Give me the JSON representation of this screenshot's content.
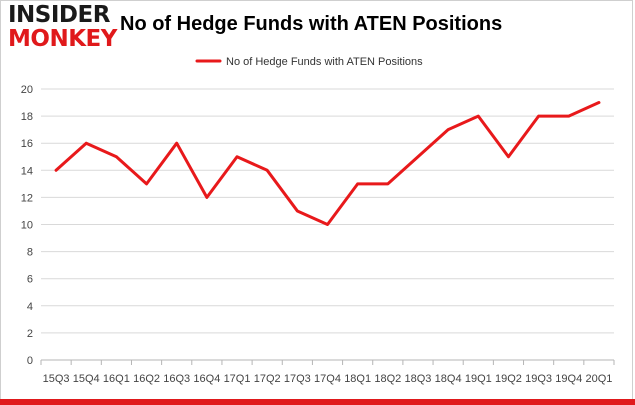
{
  "branding": {
    "logo_top": "INSIDER",
    "logo_bottom": "MONKEY",
    "logo_dark_color": "#1a1a1a",
    "logo_accent_color": "#e0191b"
  },
  "chart_data": {
    "type": "line",
    "title": "No of Hedge Funds with ATEN Positions",
    "xlabel": "",
    "ylabel": "",
    "categories": [
      "15Q3",
      "15Q4",
      "16Q1",
      "16Q2",
      "16Q3",
      "16Q4",
      "17Q1",
      "17Q2",
      "17Q3",
      "17Q4",
      "18Q1",
      "18Q2",
      "18Q3",
      "18Q4",
      "19Q1",
      "19Q2",
      "19Q3",
      "19Q4",
      "20Q1"
    ],
    "series": [
      {
        "name": "No of Hedge Funds with ATEN Positions",
        "color": "#e8191b",
        "values": [
          14,
          16,
          15,
          13,
          16,
          12,
          15,
          14,
          11,
          10,
          13,
          13,
          15,
          17,
          18,
          15,
          18,
          18,
          19
        ]
      }
    ],
    "ylim": [
      0,
      20
    ],
    "yticks": [
      0,
      2,
      4,
      6,
      8,
      10,
      12,
      14,
      16,
      18,
      20
    ],
    "grid": true,
    "legend_position": "top-center"
  }
}
